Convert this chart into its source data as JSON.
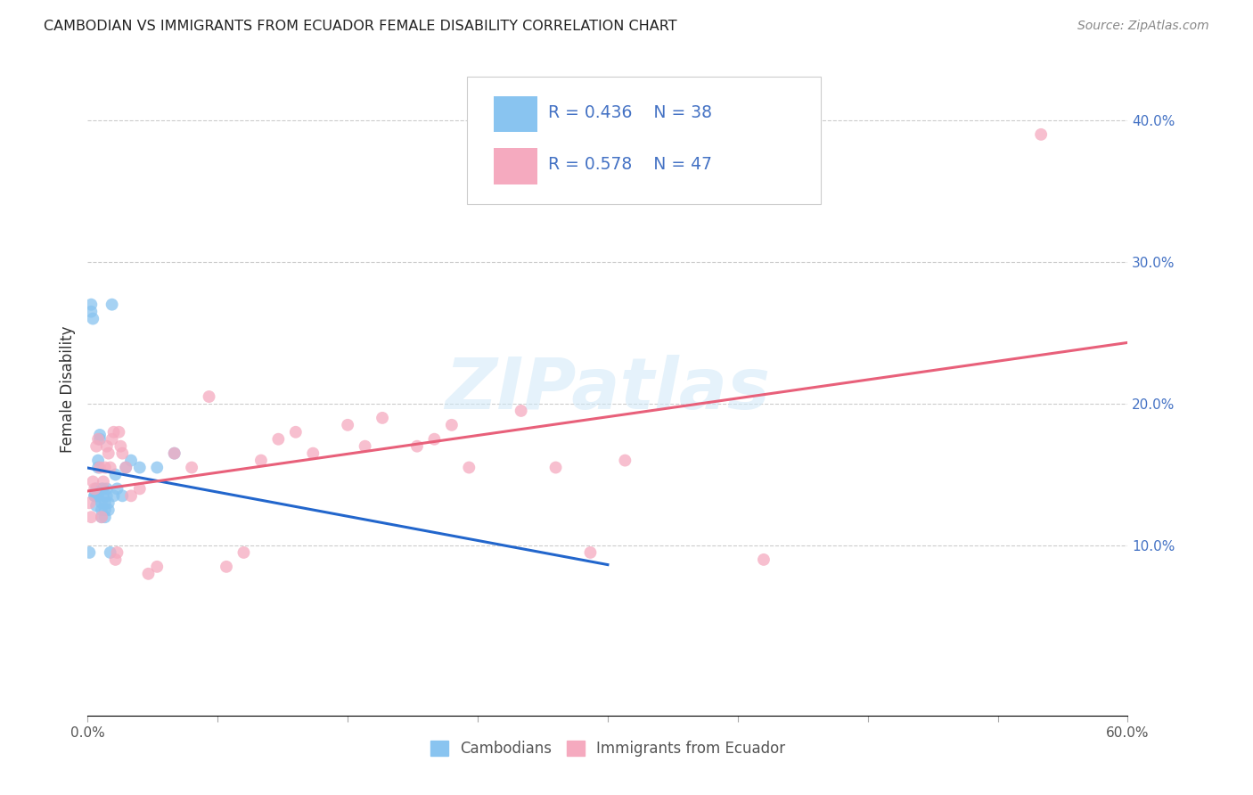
{
  "title": "CAMBODIAN VS IMMIGRANTS FROM ECUADOR FEMALE DISABILITY CORRELATION CHART",
  "source": "Source: ZipAtlas.com",
  "ylabel": "Female Disability",
  "watermark": "ZIPatlas",
  "xlim": [
    0.0,
    0.6
  ],
  "ylim": [
    -0.02,
    0.44
  ],
  "yticks": [
    0.1,
    0.2,
    0.3,
    0.4
  ],
  "ytick_labels": [
    "10.0%",
    "20.0%",
    "30.0%",
    "40.0%"
  ],
  "xtick_only_ends": [
    "0.0%",
    "60.0%"
  ],
  "xtick_positions": [
    0.0,
    0.075,
    0.15,
    0.225,
    0.3,
    0.375,
    0.45,
    0.525,
    0.6
  ],
  "legend_r1": "R = 0.436",
  "legend_n1": "N = 38",
  "legend_r2": "R = 0.578",
  "legend_n2": "N = 47",
  "color_cambodian": "#89C4F0",
  "color_ecuador": "#F5AABF",
  "color_line_cambodian": "#2266CC",
  "color_line_ecuador": "#E8607A",
  "color_text_blue": "#4472c4",
  "grid_color": "#cccccc",
  "background_color": "#ffffff",
  "cambodian_x": [
    0.001,
    0.002,
    0.002,
    0.003,
    0.004,
    0.004,
    0.005,
    0.005,
    0.005,
    0.006,
    0.006,
    0.006,
    0.007,
    0.007,
    0.008,
    0.008,
    0.008,
    0.008,
    0.009,
    0.009,
    0.01,
    0.01,
    0.01,
    0.011,
    0.011,
    0.012,
    0.012,
    0.013,
    0.014,
    0.015,
    0.016,
    0.017,
    0.02,
    0.022,
    0.025,
    0.03,
    0.04,
    0.05
  ],
  "cambodian_y": [
    0.095,
    0.265,
    0.27,
    0.26,
    0.135,
    0.135,
    0.128,
    0.135,
    0.14,
    0.155,
    0.16,
    0.135,
    0.175,
    0.178,
    0.14,
    0.13,
    0.125,
    0.12,
    0.135,
    0.14,
    0.13,
    0.125,
    0.12,
    0.135,
    0.14,
    0.13,
    0.125,
    0.095,
    0.27,
    0.135,
    0.15,
    0.14,
    0.135,
    0.155,
    0.16,
    0.155,
    0.155,
    0.165
  ],
  "ecuador_x": [
    0.001,
    0.002,
    0.003,
    0.004,
    0.005,
    0.006,
    0.007,
    0.008,
    0.009,
    0.01,
    0.011,
    0.012,
    0.013,
    0.014,
    0.015,
    0.016,
    0.017,
    0.018,
    0.019,
    0.02,
    0.022,
    0.025,
    0.03,
    0.035,
    0.04,
    0.05,
    0.06,
    0.07,
    0.08,
    0.09,
    0.1,
    0.11,
    0.12,
    0.13,
    0.15,
    0.16,
    0.17,
    0.19,
    0.2,
    0.21,
    0.22,
    0.25,
    0.27,
    0.29,
    0.31,
    0.39,
    0.55
  ],
  "ecuador_y": [
    0.13,
    0.12,
    0.145,
    0.14,
    0.17,
    0.175,
    0.155,
    0.12,
    0.145,
    0.155,
    0.17,
    0.165,
    0.155,
    0.175,
    0.18,
    0.09,
    0.095,
    0.18,
    0.17,
    0.165,
    0.155,
    0.135,
    0.14,
    0.08,
    0.085,
    0.165,
    0.155,
    0.205,
    0.085,
    0.095,
    0.16,
    0.175,
    0.18,
    0.165,
    0.185,
    0.17,
    0.19,
    0.17,
    0.175,
    0.185,
    0.155,
    0.195,
    0.155,
    0.095,
    0.16,
    0.09,
    0.39
  ]
}
